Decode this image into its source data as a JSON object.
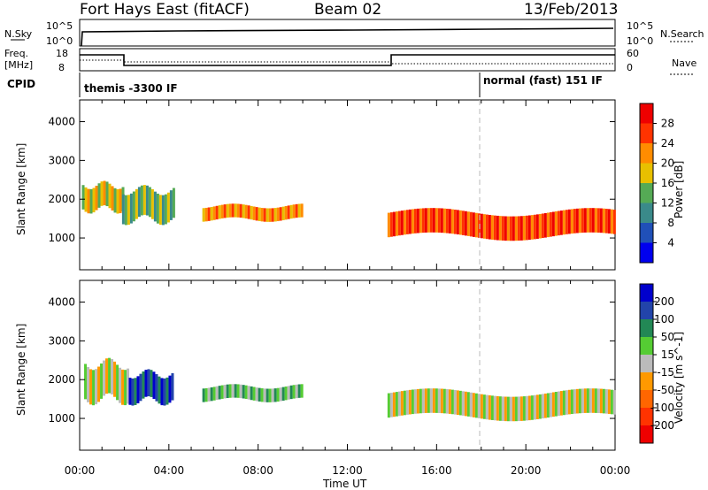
{
  "header": {
    "station": "Fort Hays East (fitACF)",
    "beam": "Beam 02",
    "date": "13/Feb/2013"
  },
  "top_panels": {
    "nsky_label": "N.Sky",
    "nsky_ticks": [
      "10^5",
      "10^0"
    ],
    "nsearch_label": "N.Search",
    "nsearch_ticks": [
      "10^5",
      "10^0"
    ],
    "freq_label_1": "Freq.",
    "freq_label_2": "[MHz]",
    "freq_ticks": [
      "18",
      "8"
    ],
    "nave_label": "Nave",
    "nave_ticks": [
      "60",
      "0"
    ],
    "cpid_label": "CPID",
    "cpid_segments": [
      {
        "text": "themis -3300 IF",
        "start": "00:00",
        "end": "18:00"
      },
      {
        "text": "normal (fast) 151 IF",
        "start": "18:00",
        "end": "24:00"
      }
    ]
  },
  "chart_data": [
    {
      "type": "heatmap",
      "panel": "power",
      "ylabel": "Slant Range [km]",
      "xlabel": "",
      "x_ticks": [
        "00:00",
        "04:00",
        "08:00",
        "12:00",
        "16:00",
        "20:00",
        "00:00"
      ],
      "x_range_hours": [
        0,
        24
      ],
      "y_ticks": [
        "1000",
        "2000",
        "3000",
        "4000"
      ],
      "ylim": [
        180,
        4560
      ],
      "colorbar": {
        "label": "Power [dB]",
        "ticks": [
          "4",
          "8",
          "12",
          "16",
          "20",
          "24",
          "28"
        ],
        "colors": [
          "#0000ee",
          "#2050b8",
          "#3a8a8a",
          "#55aa55",
          "#e8c000",
          "#ff8c00",
          "#ff3300",
          "#ee0000"
        ]
      },
      "echo_regions": [
        {
          "t_start": 0.1,
          "t_end": 1.9,
          "range_km": [
            1600,
            2500
          ],
          "power_db": 14
        },
        {
          "t_start": 1.9,
          "t_end": 4.2,
          "range_km": [
            1300,
            2400
          ],
          "power_db": 10
        },
        {
          "t_start": 5.5,
          "t_end": 10.0,
          "range_km": [
            1400,
            1900
          ],
          "power_db": 18
        },
        {
          "t_start": 13.8,
          "t_end": 24.0,
          "range_km": [
            900,
            1800
          ],
          "power_db": 24
        }
      ]
    },
    {
      "type": "heatmap",
      "panel": "velocity",
      "ylabel": "Slant Range [km]",
      "xlabel": "Time UT",
      "x_ticks": [
        "00:00",
        "04:00",
        "08:00",
        "12:00",
        "16:00",
        "20:00",
        "00:00"
      ],
      "x_range_hours": [
        0,
        24
      ],
      "y_ticks": [
        "1000",
        "2000",
        "3000",
        "4000"
      ],
      "ylim": [
        180,
        4560
      ],
      "colorbar": {
        "label": "Velocity [m s^-1]",
        "ticks": [
          "200",
          "100",
          "50",
          "15",
          "-15",
          "-50",
          "-100",
          "-200"
        ],
        "colors": [
          "#0000cc",
          "#2244aa",
          "#228855",
          "#55cc33",
          "#bbbbbb",
          "#ff9900",
          "#ff6600",
          "#ff3300",
          "#ee0000"
        ]
      },
      "echo_regions": [
        {
          "t_start": 0.2,
          "t_end": 2.2,
          "range_km": [
            1300,
            2600
          ],
          "velocity_ms": 0
        },
        {
          "t_start": 2.2,
          "t_end": 4.2,
          "range_km": [
            1300,
            2300
          ],
          "velocity_ms": 150
        },
        {
          "t_start": 5.5,
          "t_end": 10.0,
          "range_km": [
            1400,
            1900
          ],
          "velocity_ms": 30
        },
        {
          "t_start": 13.8,
          "t_end": 24.0,
          "range_km": [
            900,
            1800
          ],
          "velocity_ms": 0
        }
      ]
    }
  ]
}
